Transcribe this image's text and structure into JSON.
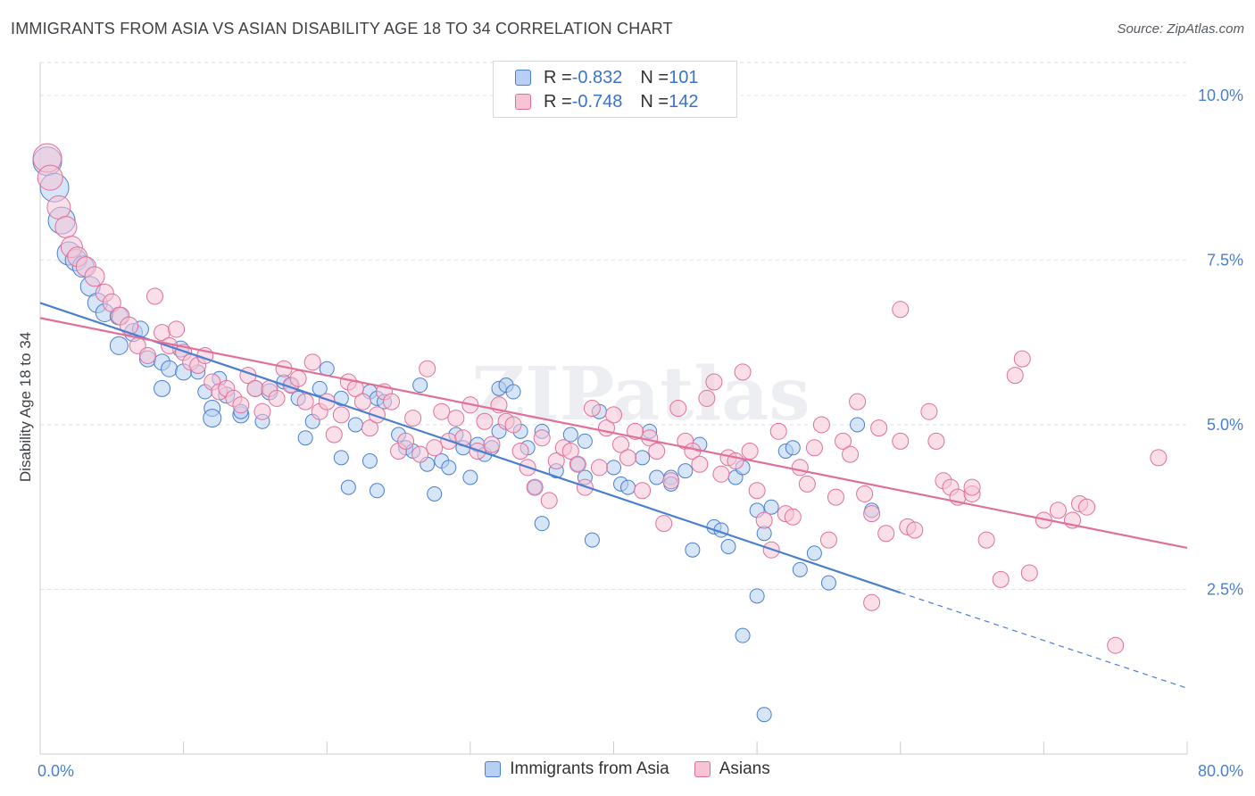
{
  "title": "IMMIGRANTS FROM ASIA VS ASIAN DISABILITY AGE 18 TO 34 CORRELATION CHART",
  "source": "Source: ZipAtlas.com",
  "watermark": "ZIPatlas",
  "legend": {
    "rows": [
      {
        "r_label": "R = ",
        "r_value": "-0.832",
        "n_label": "N = ",
        "n_value": "101",
        "color": "#4a7fd0",
        "fill": "#b6cff2"
      },
      {
        "r_label": "R = ",
        "r_value": "-0.748",
        "n_label": "N = ",
        "n_value": "142",
        "color": "#e0709a",
        "fill": "#f6c4d5"
      }
    ]
  },
  "bottom_legend": [
    "Immigrants from Asia",
    "Asians"
  ],
  "chart_data": {
    "type": "scatter",
    "xlabel": "",
    "ylabel": "Disability Age 18 to 34",
    "xlim": [
      0,
      80
    ],
    "ylim": [
      0,
      10.5
    ],
    "x_tick_labels": [
      {
        "value": 0,
        "label": "0.0%"
      },
      {
        "value": 80,
        "label": "80.0%"
      }
    ],
    "y_ticks": [
      {
        "value": 2.5,
        "label": "2.5%"
      },
      {
        "value": 5.0,
        "label": "5.0%"
      },
      {
        "value": 7.5,
        "label": "7.5%"
      },
      {
        "value": 10.0,
        "label": "10.0%"
      }
    ],
    "grid": true,
    "series": [
      {
        "name": "Immigrants from Asia",
        "color": "#4a7fd0",
        "fill": "#b6cff2",
        "trend": {
          "x0": 0,
          "y0": 6.85,
          "x1": 60,
          "y1": 2.45,
          "dash_to_x": 80,
          "dash_to_y": 1.0
        },
        "points": [
          [
            0.5,
            9.0,
            16
          ],
          [
            1,
            8.6,
            16
          ],
          [
            1.5,
            8.1,
            15
          ],
          [
            2,
            7.6,
            13
          ],
          [
            2.5,
            7.5,
            12
          ],
          [
            3,
            7.4,
            12
          ],
          [
            3.5,
            7.1,
            11
          ],
          [
            4,
            6.85,
            11
          ],
          [
            4.5,
            6.7,
            10
          ],
          [
            5.5,
            6.65,
            10
          ],
          [
            6.5,
            6.4,
            10
          ],
          [
            7,
            6.45,
            9
          ],
          [
            5.5,
            6.2,
            10
          ],
          [
            7.5,
            6.0,
            9
          ],
          [
            8.5,
            5.95,
            9
          ],
          [
            9,
            5.85,
            9
          ],
          [
            10,
            5.8,
            9
          ],
          [
            9.8,
            6.15,
            9
          ],
          [
            11,
            5.8,
            8
          ],
          [
            8.5,
            5.55,
            9
          ],
          [
            11.5,
            5.5,
            8
          ],
          [
            12,
            5.25,
            9
          ],
          [
            12,
            5.1,
            10
          ],
          [
            12.5,
            5.7,
            8
          ],
          [
            13,
            5.45,
            9
          ],
          [
            14,
            5.15,
            9
          ],
          [
            14,
            5.2,
            8
          ],
          [
            15,
            5.55,
            9
          ],
          [
            15.5,
            5.05,
            8
          ],
          [
            16,
            5.5,
            9
          ],
          [
            17,
            5.65,
            8
          ],
          [
            17.5,
            5.6,
            8
          ],
          [
            18,
            5.4,
            8
          ],
          [
            19,
            5.05,
            8
          ],
          [
            18.5,
            4.8,
            8
          ],
          [
            19.5,
            5.55,
            8
          ],
          [
            20,
            5.85,
            8
          ],
          [
            21,
            5.4,
            8
          ],
          [
            21,
            4.5,
            8
          ],
          [
            21.5,
            4.05,
            8
          ],
          [
            22,
            5.0,
            8
          ],
          [
            23,
            4.45,
            8
          ],
          [
            23.5,
            4.0,
            8
          ],
          [
            23,
            5.5,
            8
          ],
          [
            23.5,
            5.4,
            8
          ],
          [
            24,
            5.35,
            8
          ],
          [
            25,
            4.85,
            8
          ],
          [
            25.5,
            4.65,
            8
          ],
          [
            26,
            4.6,
            8
          ],
          [
            26.5,
            5.6,
            8
          ],
          [
            27,
            4.4,
            8
          ],
          [
            27.5,
            3.95,
            8
          ],
          [
            28,
            4.45,
            8
          ],
          [
            28.5,
            4.35,
            8
          ],
          [
            29,
            4.85,
            8
          ],
          [
            29.5,
            4.65,
            8
          ],
          [
            30,
            4.2,
            8
          ],
          [
            30.5,
            4.7,
            8
          ],
          [
            31,
            4.55,
            8
          ],
          [
            31.5,
            4.65,
            8
          ],
          [
            32,
            4.9,
            8
          ],
          [
            32,
            5.55,
            8
          ],
          [
            32.5,
            5.6,
            8
          ],
          [
            33,
            5.5,
            8
          ],
          [
            33.5,
            4.9,
            8
          ],
          [
            34,
            4.65,
            8
          ],
          [
            34.5,
            4.05,
            8
          ],
          [
            35,
            4.9,
            8
          ],
          [
            35,
            3.5,
            8
          ],
          [
            36,
            4.3,
            8
          ],
          [
            37,
            4.85,
            8
          ],
          [
            37.5,
            4.4,
            8
          ],
          [
            38,
            4.2,
            8
          ],
          [
            38,
            4.75,
            8
          ],
          [
            39,
            5.2,
            8
          ],
          [
            38.5,
            3.25,
            8
          ],
          [
            40,
            4.35,
            8
          ],
          [
            40.5,
            4.1,
            8
          ],
          [
            41,
            4.05,
            8
          ],
          [
            42,
            4.5,
            8
          ],
          [
            42.5,
            4.9,
            8
          ],
          [
            43,
            4.2,
            8
          ],
          [
            44,
            4.2,
            8
          ],
          [
            44,
            4.1,
            8
          ],
          [
            45,
            4.3,
            8
          ],
          [
            46,
            4.7,
            8
          ],
          [
            45.5,
            3.1,
            8
          ],
          [
            47,
            3.45,
            8
          ],
          [
            47.5,
            3.4,
            8
          ],
          [
            48,
            3.15,
            8
          ],
          [
            48.5,
            4.2,
            8
          ],
          [
            49,
            4.35,
            8
          ],
          [
            50,
            3.7,
            8
          ],
          [
            50.5,
            3.35,
            8
          ],
          [
            51,
            3.75,
            8
          ],
          [
            50,
            2.4,
            8
          ],
          [
            49,
            1.8,
            8
          ],
          [
            50.5,
            0.6,
            8
          ],
          [
            52,
            4.6,
            8
          ],
          [
            52.5,
            4.65,
            8
          ],
          [
            53,
            2.8,
            8
          ],
          [
            54,
            3.05,
            8
          ],
          [
            55,
            2.6,
            8
          ],
          [
            58,
            3.7,
            8
          ],
          [
            57,
            5.0,
            8
          ]
        ]
      },
      {
        "name": "Asians",
        "color": "#e0709a",
        "fill": "#f6c4d5",
        "trend": {
          "x0": 0,
          "y0": 6.62,
          "x1": 80,
          "y1": 3.13
        },
        "points": [
          [
            0.5,
            9.05,
            16
          ],
          [
            0.7,
            8.75,
            14
          ],
          [
            1.3,
            8.3,
            13
          ],
          [
            1.8,
            8.0,
            12
          ],
          [
            2.2,
            7.7,
            12
          ],
          [
            2.6,
            7.55,
            11
          ],
          [
            3.2,
            7.4,
            11
          ],
          [
            3.8,
            7.25,
            11
          ],
          [
            4.5,
            7.0,
            10
          ],
          [
            5,
            6.85,
            10
          ],
          [
            5.6,
            6.65,
            10
          ],
          [
            6.2,
            6.5,
            10
          ],
          [
            6.8,
            6.2,
            9
          ],
          [
            7.5,
            6.05,
            9
          ],
          [
            8,
            6.95,
            9
          ],
          [
            8.5,
            6.4,
            9
          ],
          [
            9,
            6.2,
            9
          ],
          [
            9.5,
            6.45,
            9
          ],
          [
            10,
            6.1,
            9
          ],
          [
            10.5,
            5.95,
            9
          ],
          [
            11,
            5.9,
            9
          ],
          [
            11.5,
            6.05,
            9
          ],
          [
            12,
            5.65,
            9
          ],
          [
            12.5,
            5.5,
            9
          ],
          [
            13,
            5.55,
            9
          ],
          [
            13.5,
            5.4,
            9
          ],
          [
            14,
            5.3,
            9
          ],
          [
            14.5,
            5.75,
            9
          ],
          [
            15,
            5.55,
            9
          ],
          [
            15.5,
            5.2,
            9
          ],
          [
            16,
            5.55,
            9
          ],
          [
            16.5,
            5.4,
            9
          ],
          [
            17,
            5.85,
            9
          ],
          [
            17.5,
            5.6,
            9
          ],
          [
            18,
            5.7,
            9
          ],
          [
            18.5,
            5.35,
            9
          ],
          [
            19,
            5.95,
            9
          ],
          [
            19.5,
            5.2,
            9
          ],
          [
            20,
            5.35,
            9
          ],
          [
            20.5,
            4.85,
            9
          ],
          [
            21,
            5.15,
            9
          ],
          [
            21.5,
            5.65,
            9
          ],
          [
            22,
            5.55,
            9
          ],
          [
            22.5,
            5.35,
            9
          ],
          [
            23,
            4.95,
            9
          ],
          [
            23.5,
            5.15,
            9
          ],
          [
            24,
            5.5,
            9
          ],
          [
            24.5,
            5.35,
            9
          ],
          [
            25,
            4.6,
            9
          ],
          [
            25.5,
            4.75,
            9
          ],
          [
            26,
            5.1,
            9
          ],
          [
            26.5,
            4.55,
            9
          ],
          [
            27,
            5.85,
            9
          ],
          [
            27.5,
            4.65,
            9
          ],
          [
            28,
            5.2,
            9
          ],
          [
            28.5,
            4.75,
            9
          ],
          [
            29,
            5.1,
            9
          ],
          [
            29.5,
            4.8,
            9
          ],
          [
            30,
            5.3,
            9
          ],
          [
            30.5,
            4.6,
            9
          ],
          [
            31,
            5.05,
            9
          ],
          [
            31.5,
            4.7,
            9
          ],
          [
            32,
            5.3,
            9
          ],
          [
            32.5,
            5.05,
            9
          ],
          [
            33,
            5.0,
            9
          ],
          [
            33.5,
            4.6,
            9
          ],
          [
            34,
            4.35,
            9
          ],
          [
            34.5,
            4.05,
            9
          ],
          [
            35,
            4.8,
            9
          ],
          [
            35.5,
            3.85,
            9
          ],
          [
            36,
            4.45,
            9
          ],
          [
            36.5,
            4.65,
            9
          ],
          [
            37,
            4.6,
            9
          ],
          [
            37.5,
            4.4,
            9
          ],
          [
            38,
            4.05,
            9
          ],
          [
            38.5,
            5.25,
            9
          ],
          [
            39,
            4.35,
            9
          ],
          [
            39.5,
            4.95,
            9
          ],
          [
            40,
            5.15,
            9
          ],
          [
            40.5,
            4.7,
            9
          ],
          [
            41,
            4.5,
            9
          ],
          [
            41.5,
            4.9,
            9
          ],
          [
            42,
            4.0,
            9
          ],
          [
            42.5,
            4.8,
            9
          ],
          [
            43,
            4.6,
            9
          ],
          [
            43.5,
            3.5,
            9
          ],
          [
            44,
            4.15,
            9
          ],
          [
            44.5,
            5.25,
            9
          ],
          [
            45,
            4.75,
            9
          ],
          [
            45.5,
            4.6,
            9
          ],
          [
            46,
            4.4,
            9
          ],
          [
            46.5,
            5.4,
            9
          ],
          [
            47,
            5.65,
            9
          ],
          [
            47.5,
            4.25,
            9
          ],
          [
            48,
            4.5,
            9
          ],
          [
            48.5,
            4.45,
            9
          ],
          [
            49,
            5.8,
            9
          ],
          [
            49.5,
            4.6,
            9
          ],
          [
            50,
            4.0,
            9
          ],
          [
            50.5,
            3.55,
            9
          ],
          [
            51,
            3.1,
            9
          ],
          [
            51.5,
            4.9,
            9
          ],
          [
            52,
            3.65,
            9
          ],
          [
            52.5,
            3.6,
            9
          ],
          [
            53,
            4.35,
            9
          ],
          [
            53.5,
            4.1,
            9
          ],
          [
            54,
            4.65,
            9
          ],
          [
            54.5,
            5.0,
            9
          ],
          [
            55,
            3.25,
            9
          ],
          [
            55.5,
            3.9,
            9
          ],
          [
            56,
            4.75,
            9
          ],
          [
            56.5,
            4.55,
            9
          ],
          [
            57,
            5.35,
            9
          ],
          [
            57.5,
            3.95,
            9
          ],
          [
            58,
            3.65,
            9
          ],
          [
            58.5,
            4.95,
            9
          ],
          [
            58,
            2.3,
            9
          ],
          [
            59,
            3.35,
            9
          ],
          [
            60,
            4.75,
            9
          ],
          [
            60.5,
            3.45,
            9
          ],
          [
            61,
            3.4,
            9
          ],
          [
            62,
            5.2,
            9
          ],
          [
            62.5,
            4.75,
            9
          ],
          [
            63,
            4.15,
            9
          ],
          [
            63.5,
            4.05,
            9
          ],
          [
            64,
            3.9,
            9
          ],
          [
            65,
            3.95,
            9
          ],
          [
            66,
            3.25,
            9
          ],
          [
            67,
            2.65,
            9
          ],
          [
            68,
            5.75,
            9
          ],
          [
            68.5,
            6.0,
            9
          ],
          [
            69,
            2.75,
            9
          ],
          [
            70,
            3.55,
            9
          ],
          [
            71,
            3.7,
            9
          ],
          [
            72,
            3.55,
            9
          ],
          [
            72.5,
            3.8,
            9
          ],
          [
            73,
            3.75,
            9
          ],
          [
            78,
            4.5,
            9
          ],
          [
            75,
            1.65,
            9
          ],
          [
            65,
            4.05,
            9
          ],
          [
            60,
            6.75,
            9
          ]
        ]
      }
    ]
  }
}
